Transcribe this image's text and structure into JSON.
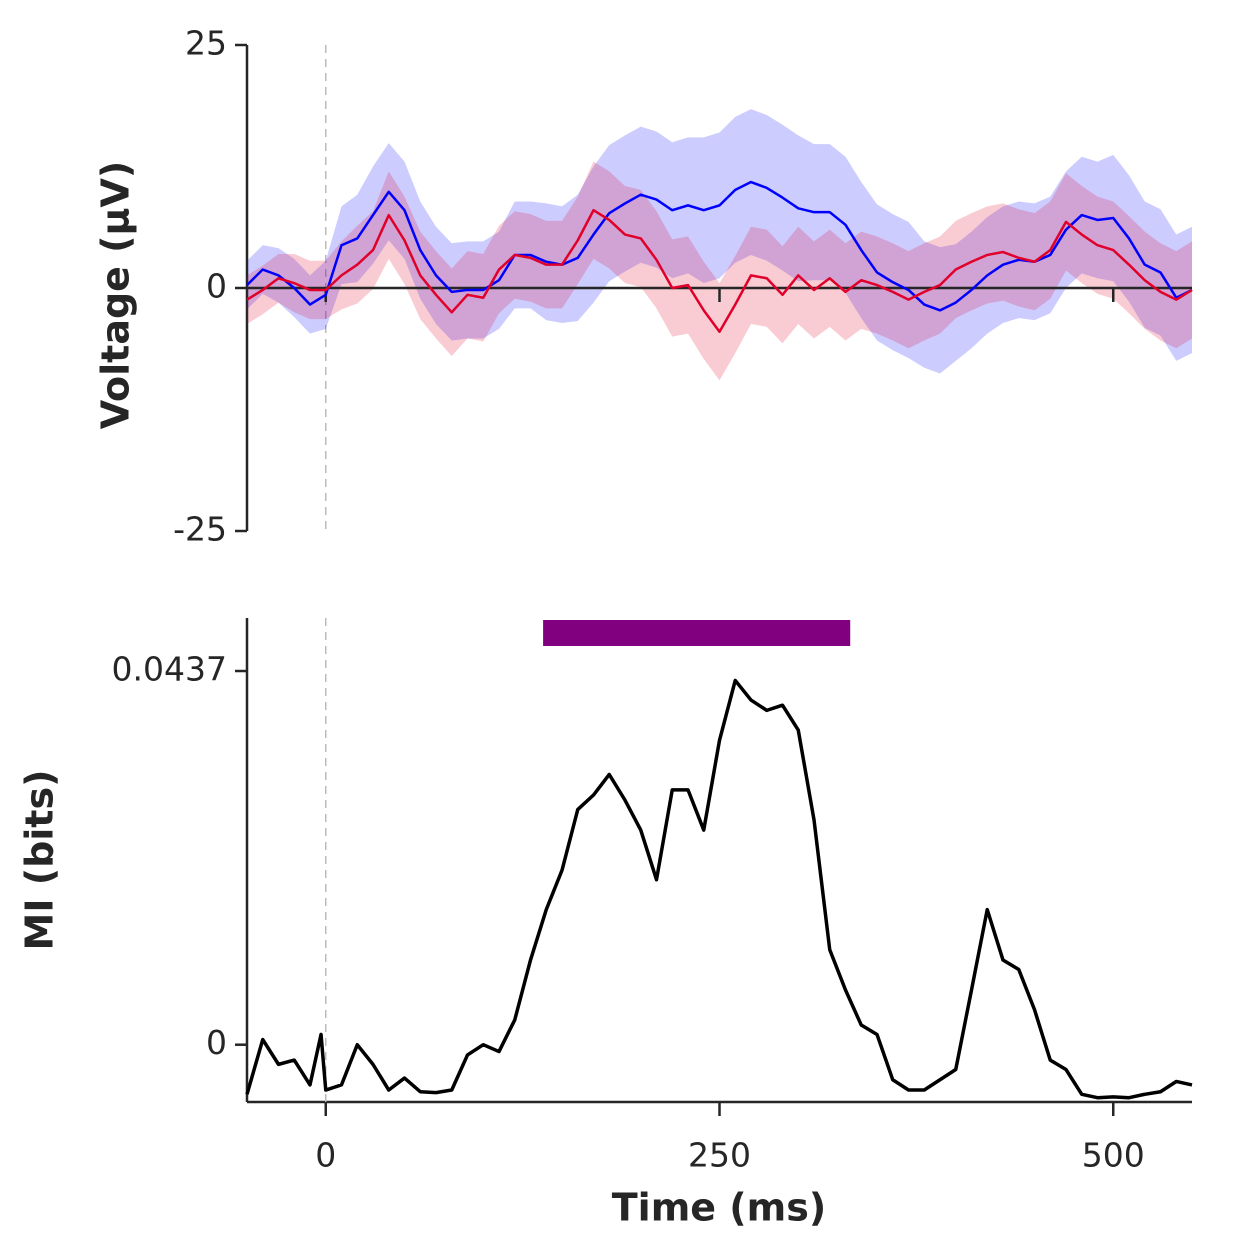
{
  "chart_data": [
    {
      "type": "line",
      "ylabel": "Voltage (μV)",
      "xlim": [
        -50,
        550
      ],
      "ylim": [
        -25,
        25
      ],
      "yticks": [
        -25,
        0,
        25
      ],
      "xticks": [
        0,
        250,
        500
      ],
      "hline": 0,
      "vline": 0,
      "x": [
        -50,
        -40,
        -30,
        -20,
        -10,
        0,
        10,
        20,
        30,
        40,
        50,
        60,
        70,
        80,
        90,
        100,
        110,
        120,
        130,
        140,
        150,
        160,
        170,
        180,
        190,
        200,
        210,
        220,
        230,
        240,
        250,
        260,
        270,
        280,
        290,
        300,
        310,
        320,
        330,
        340,
        350,
        360,
        370,
        380,
        390,
        400,
        410,
        420,
        430,
        440,
        450,
        460,
        470,
        480,
        490,
        500,
        510,
        520,
        530,
        540,
        550
      ],
      "series": [
        {
          "color": "#0000ff",
          "values": [
            0.3,
            1.9,
            1.3,
            0,
            -1.7,
            -0.7,
            4.4,
            5.1,
            7.5,
            9.9,
            8.0,
            3.9,
            1.3,
            -0.4,
            -0.2,
            -0.2,
            0.8,
            3.4,
            3.4,
            2.7,
            2.4,
            3.1,
            5.5,
            7.7,
            8.7,
            9.6,
            9.1,
            8.0,
            8.5,
            8.0,
            8.5,
            10.1,
            10.9,
            10.3,
            9.3,
            8.2,
            7.8,
            7.8,
            6.5,
            3.9,
            1.6,
            0.6,
            -0.2,
            -1.7,
            -2.3,
            -1.5,
            -0.2,
            1.3,
            2.4,
            2.9,
            2.7,
            3.4,
            6.0,
            7.5,
            7.0,
            7.2,
            5.1,
            2.4,
            1.6,
            -1.0,
            -0.2
          ],
          "errors": [
            2.5,
            2.5,
            2.8,
            3,
            3,
            3.5,
            4,
            4.5,
            5,
            5,
            5,
            5,
            5,
            5,
            5,
            5,
            5,
            5.5,
            5.5,
            6,
            6,
            6.5,
            7,
            7,
            7,
            7,
            7,
            7,
            7,
            7.5,
            7.5,
            7.5,
            7.5,
            7.5,
            7.5,
            7.5,
            7,
            7,
            7,
            7,
            7,
            7,
            7,
            6.5,
            6.5,
            6,
            6,
            6,
            6,
            6,
            6,
            6,
            6,
            6,
            6,
            6.5,
            6.5,
            6.5,
            6.5,
            6.5,
            6.5
          ]
        },
        {
          "color": "#e0002a",
          "values": [
            -1.2,
            -0.2,
            1.0,
            0.5,
            -0.2,
            -0.2,
            1.3,
            2.4,
            3.9,
            7.5,
            4.9,
            1.3,
            -0.7,
            -2.5,
            -0.7,
            -1.0,
            1.9,
            3.4,
            3.1,
            2.4,
            2.4,
            4.9,
            8.0,
            7.0,
            5.5,
            5.1,
            2.9,
            0,
            0.3,
            -2.3,
            -4.5,
            -1.7,
            1.3,
            1.0,
            -0.7,
            1.3,
            -0.2,
            1.0,
            -0.4,
            0.8,
            0.3,
            -0.4,
            -1.2,
            -0.4,
            0.3,
            1.9,
            2.7,
            3.4,
            3.7,
            3.1,
            2.7,
            3.9,
            6.8,
            5.5,
            4.4,
            3.9,
            2.4,
            0.8,
            -0.4,
            -1.2,
            -0.2
          ],
          "errors": [
            2.5,
            2.5,
            2.5,
            3,
            3,
            3,
            3.5,
            4,
            4,
            4.5,
            4.5,
            4.5,
            4.5,
            4.5,
            4.5,
            4.5,
            4.5,
            4.5,
            4.5,
            4.5,
            4.5,
            4.5,
            5,
            5,
            5,
            5,
            5,
            5,
            5,
            5,
            5,
            5,
            5,
            5,
            5,
            5,
            5,
            5,
            5,
            5,
            5,
            5,
            5,
            5,
            5,
            5,
            5,
            5,
            5,
            5,
            5,
            5,
            5,
            5,
            5,
            5,
            5,
            5,
            5,
            5,
            5
          ]
        }
      ]
    },
    {
      "type": "line",
      "ylabel": "MI (bits)",
      "xlabel": "Time (ms)",
      "xlim": [
        -50,
        550
      ],
      "ylim": [
        -0.0067,
        0.0499
      ],
      "yticks": [
        0,
        0.0437
      ],
      "xticks": [
        0,
        250,
        500
      ],
      "vline": 0,
      "significance": {
        "x": [
          138,
          333
        ],
        "color": "#800080"
      },
      "x": [
        -50,
        -40,
        -30,
        -20,
        -10,
        -3,
        0,
        10,
        20,
        30,
        40,
        50,
        60,
        70,
        80,
        90,
        100,
        110,
        120,
        130,
        140,
        150,
        160,
        170,
        180,
        190,
        200,
        210,
        220,
        230,
        240,
        250,
        260,
        270,
        280,
        290,
        300,
        310,
        320,
        330,
        340,
        350,
        360,
        370,
        380,
        390,
        400,
        410,
        420,
        430,
        440,
        450,
        460,
        470,
        480,
        490,
        500,
        510,
        520,
        530,
        540,
        550
      ],
      "series": [
        {
          "color": "#000000",
          "values": [
            -0.0058,
            0.0006,
            -0.0023,
            -0.0018,
            -0.0047,
            0.0012,
            -0.0053,
            -0.0047,
            0,
            -0.0023,
            -0.0053,
            -0.0039,
            -0.0055,
            -0.0056,
            -0.0053,
            -0.0012,
            0,
            -0.0008,
            0.0029,
            0.0099,
            0.0158,
            0.0204,
            0.0275,
            0.0292,
            0.0316,
            0.0286,
            0.0251,
            0.0193,
            0.0298,
            0.0298,
            0.0251,
            0.0356,
            0.0426,
            0.0403,
            0.0391,
            0.0397,
            0.0368,
            0.0263,
            0.0111,
            0.0064,
            0.0023,
            0.0012,
            -0.0041,
            -0.0053,
            -0.0053,
            -0.0041,
            -0.0029,
            0.0064,
            0.0158,
            0.0099,
            0.0088,
            0.0041,
            -0.0018,
            -0.0029,
            -0.0058,
            -0.0062,
            -0.0061,
            -0.0062,
            -0.0058,
            -0.0055,
            -0.0043,
            -0.0047
          ]
        }
      ]
    }
  ]
}
